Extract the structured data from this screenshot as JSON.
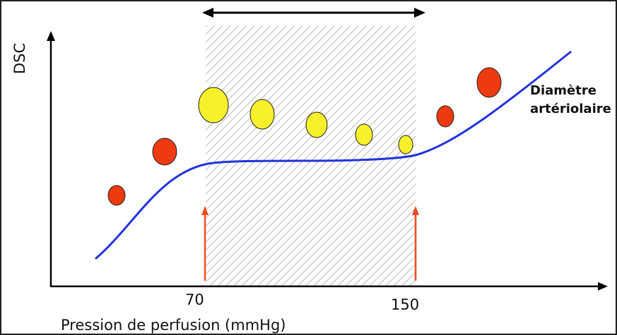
{
  "diagram": {
    "y_axis_label": "DSC",
    "x_axis_label": "Pression de perfusion (mmHg)",
    "tick_labels": [
      "70",
      "150"
    ],
    "curve_label_line1": "Diamètre",
    "curve_label_line2": "artériolaire",
    "colors": {
      "curve": "#2233dd",
      "vessel_small_pressure": "#ee3a10",
      "vessel_autoregulated": "#f8f02a",
      "limit_arrows": "#ee4a22",
      "hatch": "#b8b8b8",
      "axes": "#000000"
    },
    "vessels": [
      {
        "pressure_zone": "below",
        "fill": "red"
      },
      {
        "pressure_zone": "below",
        "fill": "red"
      },
      {
        "pressure_zone": "plateau",
        "fill": "yellow"
      },
      {
        "pressure_zone": "plateau",
        "fill": "yellow"
      },
      {
        "pressure_zone": "plateau",
        "fill": "yellow"
      },
      {
        "pressure_zone": "plateau",
        "fill": "yellow"
      },
      {
        "pressure_zone": "plateau",
        "fill": "yellow"
      },
      {
        "pressure_zone": "above",
        "fill": "red"
      },
      {
        "pressure_zone": "above",
        "fill": "red"
      }
    ]
  }
}
